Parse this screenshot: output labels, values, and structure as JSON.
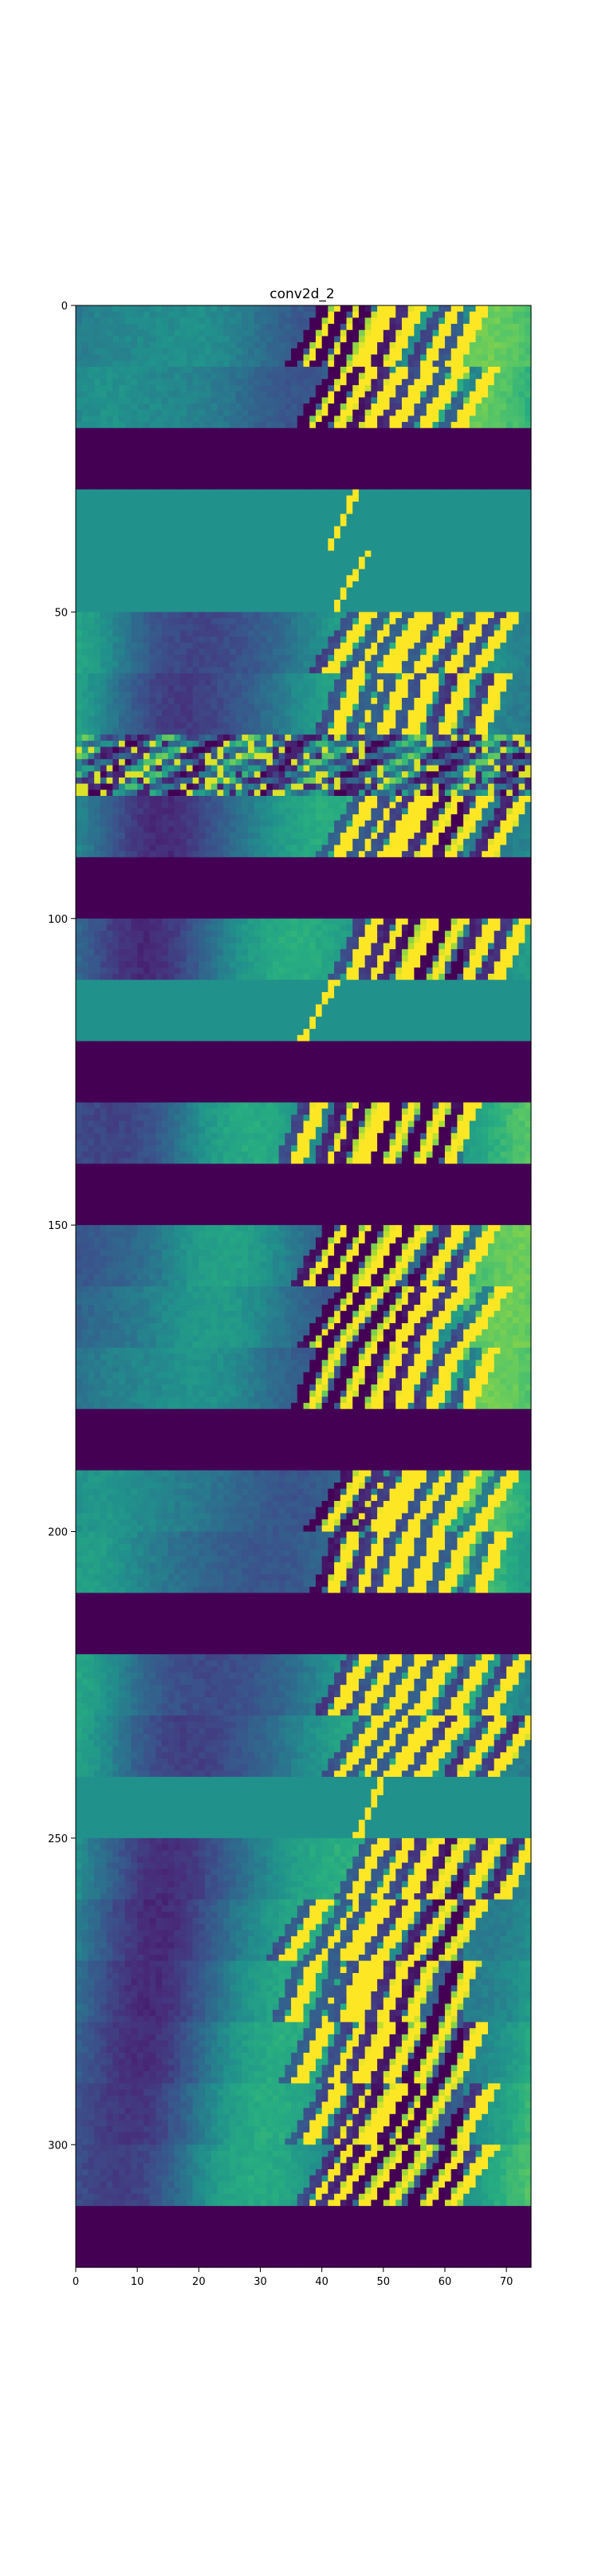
{
  "chart_data": {
    "type": "heatmap",
    "title": "conv2d_2",
    "xlabel": "",
    "ylabel": "",
    "xlim": [
      0,
      74
    ],
    "ylim": [
      0,
      320
    ],
    "x_ticks": [
      0,
      10,
      20,
      30,
      40,
      50,
      60,
      70
    ],
    "y_ticks": [
      0,
      50,
      100,
      150,
      200,
      250,
      300
    ],
    "colormap": "viridis",
    "colors": {
      "low": "#440154",
      "mid": "#21918c",
      "high": "#fde725"
    },
    "band_height": 10,
    "bands": [
      {
        "y0": 0,
        "kind": "stripes"
      },
      {
        "y0": 10,
        "kind": "stripes"
      },
      {
        "y0": 20,
        "kind": "empty"
      },
      {
        "y0": 30,
        "kind": "flat_sparse"
      },
      {
        "y0": 40,
        "kind": "flat_sparse"
      },
      {
        "y0": 50,
        "kind": "stripes"
      },
      {
        "y0": 60,
        "kind": "stripes"
      },
      {
        "y0": 70,
        "kind": "noisy"
      },
      {
        "y0": 80,
        "kind": "stripes"
      },
      {
        "y0": 90,
        "kind": "empty"
      },
      {
        "y0": 100,
        "kind": "stripes"
      },
      {
        "y0": 110,
        "kind": "flat_sparse"
      },
      {
        "y0": 120,
        "kind": "empty"
      },
      {
        "y0": 130,
        "kind": "stripes"
      },
      {
        "y0": 140,
        "kind": "empty"
      },
      {
        "y0": 150,
        "kind": "stripes"
      },
      {
        "y0": 160,
        "kind": "stripes"
      },
      {
        "y0": 170,
        "kind": "stripes"
      },
      {
        "y0": 180,
        "kind": "empty"
      },
      {
        "y0": 190,
        "kind": "stripes"
      },
      {
        "y0": 200,
        "kind": "stripes"
      },
      {
        "y0": 210,
        "kind": "empty"
      },
      {
        "y0": 220,
        "kind": "stripes"
      },
      {
        "y0": 230,
        "kind": "stripes"
      },
      {
        "y0": 240,
        "kind": "flat_sparse"
      },
      {
        "y0": 250,
        "kind": "stripes"
      },
      {
        "y0": 260,
        "kind": "stripes"
      },
      {
        "y0": 270,
        "kind": "stripes"
      },
      {
        "y0": 280,
        "kind": "stripes"
      },
      {
        "y0": 290,
        "kind": "stripes"
      },
      {
        "y0": 300,
        "kind": "stripes"
      },
      {
        "y0": 310,
        "kind": "empty"
      }
    ]
  }
}
